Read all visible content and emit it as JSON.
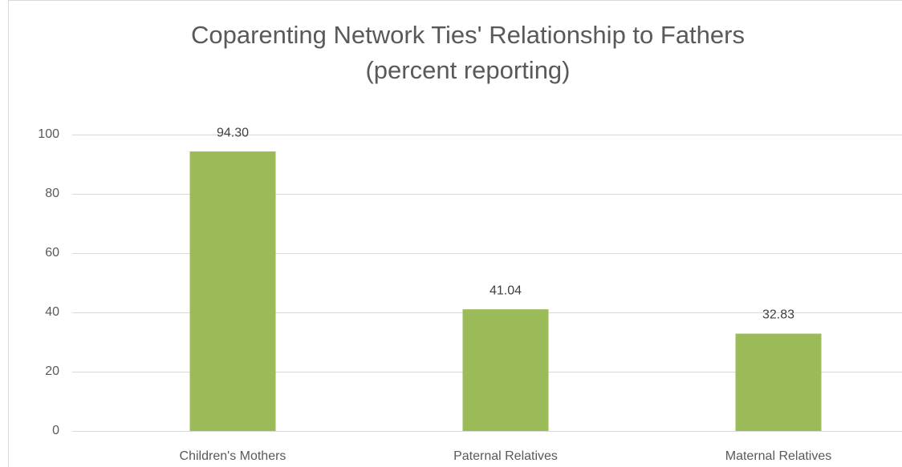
{
  "chart_data": {
    "type": "bar",
    "title": "Coparenting Network Ties' Relationship to Fathers",
    "subtitle": "(percent reporting)",
    "categories": [
      "Children's Mothers",
      "Paternal Relatives",
      "Maternal Relatives"
    ],
    "values": [
      94.3,
      41.04,
      32.83
    ],
    "value_labels": [
      "94.30",
      "41.04",
      "32.83"
    ],
    "color": "#9bbb59",
    "ylim": [
      0,
      100
    ],
    "yticks": [
      0,
      20,
      40,
      60,
      80,
      100
    ],
    "grid": true
  }
}
